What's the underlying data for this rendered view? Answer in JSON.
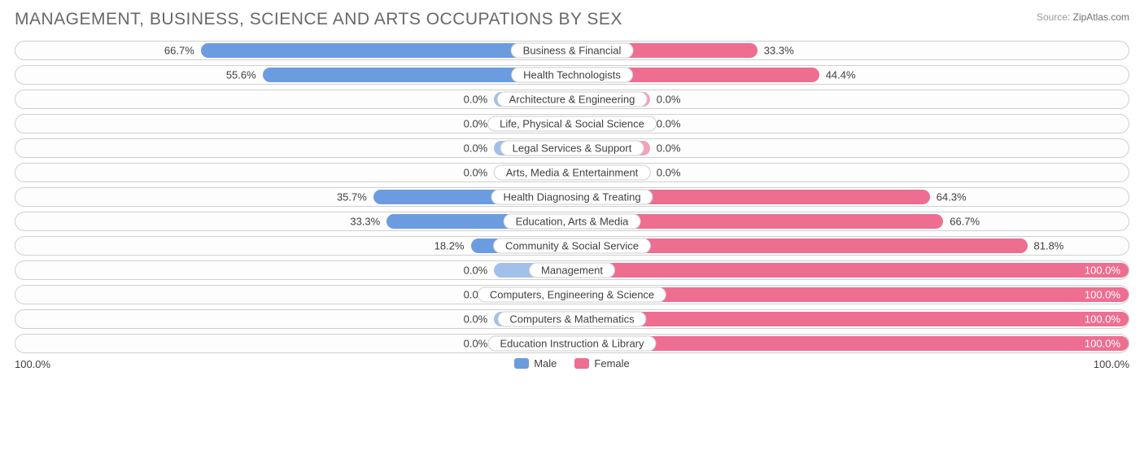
{
  "title": "MANAGEMENT, BUSINESS, SCIENCE AND ARTS OCCUPATIONS BY SEX",
  "source": {
    "label": "Source:",
    "value": "ZipAtlas.com"
  },
  "colors": {
    "male": "#6c9ce0",
    "female": "#ed6e91",
    "male_short": "#a3c0ea",
    "female_short": "#f2a3b9",
    "border": "#cfcfcf",
    "text": "#404040"
  },
  "axis": {
    "left": "100.0%",
    "right": "100.0%"
  },
  "legend": [
    {
      "label": "Male",
      "colorKey": "male"
    },
    {
      "label": "Female",
      "colorKey": "female"
    }
  ],
  "short_bar_width_pct": 14,
  "rows": [
    {
      "label": "Business & Financial",
      "male": 66.7,
      "female": 33.3
    },
    {
      "label": "Health Technologists",
      "male": 55.6,
      "female": 44.4
    },
    {
      "label": "Architecture & Engineering",
      "male": 0.0,
      "female": 0.0
    },
    {
      "label": "Life, Physical & Social Science",
      "male": 0.0,
      "female": 0.0
    },
    {
      "label": "Legal Services & Support",
      "male": 0.0,
      "female": 0.0
    },
    {
      "label": "Arts, Media & Entertainment",
      "male": 0.0,
      "female": 0.0
    },
    {
      "label": "Health Diagnosing & Treating",
      "male": 35.7,
      "female": 64.3
    },
    {
      "label": "Education, Arts & Media",
      "male": 33.3,
      "female": 66.7
    },
    {
      "label": "Community & Social Service",
      "male": 18.2,
      "female": 81.8
    },
    {
      "label": "Management",
      "male": 0.0,
      "female": 100.0
    },
    {
      "label": "Computers, Engineering & Science",
      "male": 0.0,
      "female": 100.0
    },
    {
      "label": "Computers & Mathematics",
      "male": 0.0,
      "female": 100.0
    },
    {
      "label": "Education Instruction & Library",
      "male": 0.0,
      "female": 100.0
    }
  ]
}
